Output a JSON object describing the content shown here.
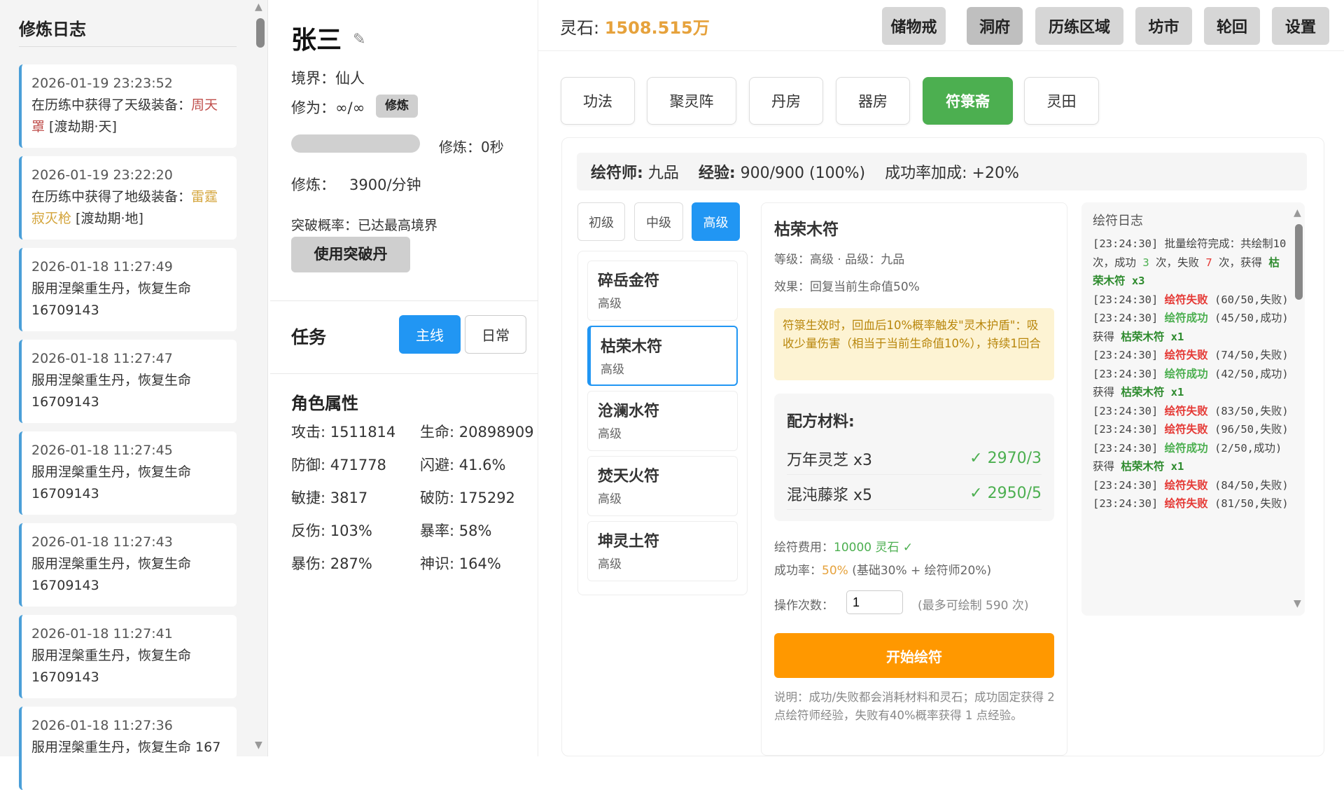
{
  "left": {
    "title": "修炼日志",
    "entries": [
      {
        "time": "2026-01-19 23:23:52",
        "prefix": "在历练中获得了天级装备：",
        "item": "周天罩",
        "suffix": " [渡劫期·天]",
        "color": "#c0504d"
      },
      {
        "time": "2026-01-19 23:22:20",
        "prefix": "在历练中获得了地级装备：",
        "item": "雷霆寂灭枪",
        "suffix": " [渡劫期·地]",
        "color": "#d4a53c"
      },
      {
        "time": "2026-01-18 11:27:49",
        "text": "服用涅槃重生丹，恢复生命 16709143"
      },
      {
        "time": "2026-01-18 11:27:47",
        "text": "服用涅槃重生丹，恢复生命 16709143"
      },
      {
        "time": "2026-01-18 11:27:45",
        "text": "服用涅槃重生丹，恢复生命 16709143"
      },
      {
        "time": "2026-01-18 11:27:43",
        "text": "服用涅槃重生丹，恢复生命 16709143"
      },
      {
        "time": "2026-01-18 11:27:41",
        "text": "服用涅槃重生丹，恢复生命 16709143"
      },
      {
        "time": "2026-01-18 11:27:36",
        "text": "服用涅槃重生丹，恢复生命 167"
      }
    ]
  },
  "player": {
    "name": "张三",
    "realm": "境界：仙人",
    "cultivation": "修为：∞/∞",
    "cultivate_btn": "修炼",
    "progress": 0,
    "timer": "修炼：0秒",
    "rate_label": "修炼：",
    "rate": "3900/分钟",
    "breakthrough": "突破概率：已达最高境界",
    "breakthrough_btn": "使用突破丹"
  },
  "tasks": {
    "title": "任务",
    "tabs": [
      "主线",
      "日常"
    ]
  },
  "attrs": {
    "title": "角色属性",
    "items": [
      "攻击: 1511814",
      "生命: 20898909",
      "防御: 471778",
      "闪避: 41.6%",
      "敏捷: 3817",
      "破防: 175292",
      "反伤: 103%",
      "暴率: 58%",
      "暴伤: 287%",
      "神识: 164%"
    ]
  },
  "top": {
    "stone_label": "灵石: ",
    "stone_value": "1508.515万",
    "nav": [
      "储物戒",
      "洞府",
      "历练区域",
      "坊市",
      "轮回",
      "设置"
    ],
    "active_nav": "洞府"
  },
  "subtabs": {
    "items": [
      "功法",
      "聚灵阵",
      "丹房",
      "器房",
      "符箓斋",
      "灵田"
    ],
    "active": "符箓斋"
  },
  "talisman": {
    "master_label": "绘符师:",
    "master": "九品",
    "exp_label": "经验:",
    "exp": "900/900 (100%)",
    "bonus_label": "成功率加成:",
    "bonus": "+20%",
    "grades": [
      "初级",
      "中级",
      "高级"
    ],
    "active_grade": "高级",
    "list": [
      {
        "name": "碎岳金符",
        "grade": "高级"
      },
      {
        "name": "枯荣木符",
        "grade": "高级"
      },
      {
        "name": "沧澜水符",
        "grade": "高级"
      },
      {
        "name": "焚天火符",
        "grade": "高级"
      },
      {
        "name": "坤灵土符",
        "grade": "高级"
      }
    ],
    "detail": {
      "name": "枯荣木符",
      "level": "等级：高级 · 品级：九品",
      "effect": "效果：回复当前生命值50%",
      "note": "符箓生效时，回血后10%概率触发\"灵木护盾\"：吸收少量伤害（相当于当前生命值10%），持续1回合",
      "materials_title": "配方材料:",
      "materials": [
        {
          "name": "万年灵芝 x3",
          "have": "✓ 2970/3"
        },
        {
          "name": "混沌藤浆 x5",
          "have": "✓ 2950/5"
        }
      ],
      "cost_label": "绘符费用：",
      "cost": "10000 灵石 ✓",
      "rate_label": "成功率：",
      "rate": "50%",
      "rate_detail": " (基础30% + 绘符师20%)",
      "count_label": "操作次数：",
      "count": "1",
      "max": "(最多可绘制 590 次)",
      "start_btn": "开始绘符",
      "help": "说明：成功/失败都会消耗材料和灵石；成功固定获得 2 点绘符师经验，失败有40%概率获得 1 点经验。"
    },
    "log": {
      "title": "绘符日志",
      "lines": [
        {
          "t": "[23:24:30] ",
          "a": "批量绘符完成：共绘制10 次，成功 ",
          "s": "3",
          "b": " 次，失败 ",
          "f": "7",
          "c": " 次，获得 ",
          "item": "枯荣木符 x3"
        },
        {
          "t": "[23:24:30] ",
          "res": "绘符失败",
          "ok": false,
          "d": " (60/50,失败)"
        },
        {
          "t": "[23:24:30] ",
          "res": "绘符成功",
          "ok": true,
          "d": " (45/50,成功) 获得 ",
          "item": "枯荣木符 x1"
        },
        {
          "t": "[23:24:30] ",
          "res": "绘符失败",
          "ok": false,
          "d": " (74/50,失败)"
        },
        {
          "t": "[23:24:30] ",
          "res": "绘符成功",
          "ok": true,
          "d": " (42/50,成功) 获得 ",
          "item": "枯荣木符 x1"
        },
        {
          "t": "[23:24:30] ",
          "res": "绘符失败",
          "ok": false,
          "d": " (83/50,失败)"
        },
        {
          "t": "[23:24:30] ",
          "res": "绘符失败",
          "ok": false,
          "d": " (96/50,失败)"
        },
        {
          "t": "[23:24:30] ",
          "res": "绘符成功",
          "ok": true,
          "d": " (2/50,成功) 获得 ",
          "item": "枯荣木符 x1"
        },
        {
          "t": "[23:24:30] ",
          "res": "绘符失败",
          "ok": false,
          "d": " (84/50,失败)"
        },
        {
          "t": "[23:24:30] ",
          "res": "绘符失败",
          "ok": false,
          "d": " (81/50,失败)"
        }
      ]
    }
  },
  "colors": {
    "accent_green": "#4caf50",
    "accent_blue": "#2196f3",
    "orange": "#ff9800",
    "stone": "#e6a23c"
  }
}
